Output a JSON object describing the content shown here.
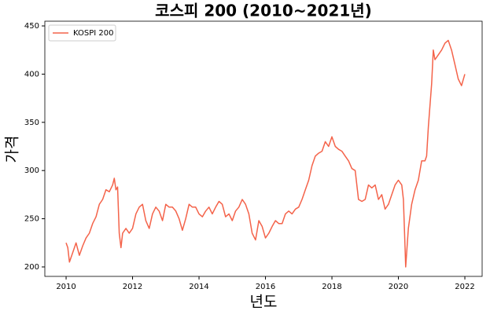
{
  "chart_data": {
    "type": "line",
    "title": "코스피 200 (2010~2021년)",
    "x_label": "년도",
    "y_label": "가격",
    "x": [
      2010.0,
      2010.05,
      2010.1,
      2010.2,
      2010.3,
      2010.4,
      2010.5,
      2010.6,
      2010.7,
      2010.8,
      2010.9,
      2011.0,
      2011.1,
      2011.2,
      2011.3,
      2011.4,
      2011.45,
      2011.5,
      2011.55,
      2011.6,
      2011.65,
      2011.7,
      2011.8,
      2011.9,
      2012.0,
      2012.1,
      2012.2,
      2012.3,
      2012.4,
      2012.5,
      2012.6,
      2012.7,
      2012.8,
      2012.9,
      2013.0,
      2013.1,
      2013.2,
      2013.3,
      2013.4,
      2013.5,
      2013.6,
      2013.7,
      2013.8,
      2013.9,
      2014.0,
      2014.1,
      2014.2,
      2014.3,
      2014.4,
      2014.5,
      2014.6,
      2014.7,
      2014.8,
      2014.9,
      2015.0,
      2015.1,
      2015.2,
      2015.3,
      2015.4,
      2015.5,
      2015.6,
      2015.7,
      2015.8,
      2015.9,
      2016.0,
      2016.1,
      2016.2,
      2016.3,
      2016.4,
      2016.5,
      2016.6,
      2016.7,
      2016.8,
      2016.9,
      2017.0,
      2017.1,
      2017.2,
      2017.3,
      2017.4,
      2017.5,
      2017.6,
      2017.7,
      2017.8,
      2017.9,
      2018.0,
      2018.1,
      2018.2,
      2018.3,
      2018.4,
      2018.5,
      2018.6,
      2018.7,
      2018.8,
      2018.9,
      2019.0,
      2019.1,
      2019.2,
      2019.3,
      2019.4,
      2019.5,
      2019.6,
      2019.7,
      2019.8,
      2019.9,
      2020.0,
      2020.1,
      2020.15,
      2020.2,
      2020.22,
      2020.3,
      2020.4,
      2020.5,
      2020.6,
      2020.7,
      2020.8,
      2020.85,
      2020.9,
      2021.0,
      2021.05,
      2021.1,
      2021.2,
      2021.3,
      2021.4,
      2021.5,
      2021.6,
      2021.7,
      2021.8,
      2021.9,
      2022.0
    ],
    "series": [
      {
        "name": "KOSPI 200",
        "color": "#f4634a",
        "values": [
          225,
          220,
          205,
          215,
          225,
          212,
          222,
          230,
          235,
          245,
          252,
          265,
          270,
          280,
          278,
          285,
          292,
          280,
          283,
          235,
          220,
          235,
          240,
          235,
          240,
          255,
          262,
          265,
          248,
          240,
          255,
          262,
          258,
          248,
          265,
          262,
          262,
          258,
          250,
          238,
          250,
          265,
          262,
          262,
          255,
          252,
          258,
          262,
          255,
          262,
          268,
          265,
          252,
          255,
          248,
          258,
          262,
          270,
          265,
          255,
          235,
          228,
          248,
          242,
          230,
          235,
          242,
          248,
          245,
          245,
          255,
          258,
          255,
          260,
          262,
          270,
          280,
          290,
          305,
          315,
          318,
          320,
          330,
          325,
          335,
          325,
          322,
          320,
          315,
          310,
          302,
          300,
          270,
          268,
          270,
          285,
          282,
          285,
          270,
          275,
          260,
          265,
          275,
          285,
          290,
          285,
          270,
          220,
          200,
          240,
          265,
          280,
          290,
          310,
          310,
          315,
          345,
          390,
          425,
          415,
          420,
          425,
          432,
          435,
          425,
          410,
          395,
          388,
          400
        ]
      }
    ],
    "xlim": [
      2009.36,
      2022.52
    ],
    "ylim": [
      190.2,
      454.9
    ],
    "xticks": [
      2010,
      2012,
      2014,
      2016,
      2018,
      2020,
      2022
    ],
    "yticks": [
      200,
      250,
      300,
      350,
      400,
      450
    ],
    "legend": "upper left"
  }
}
